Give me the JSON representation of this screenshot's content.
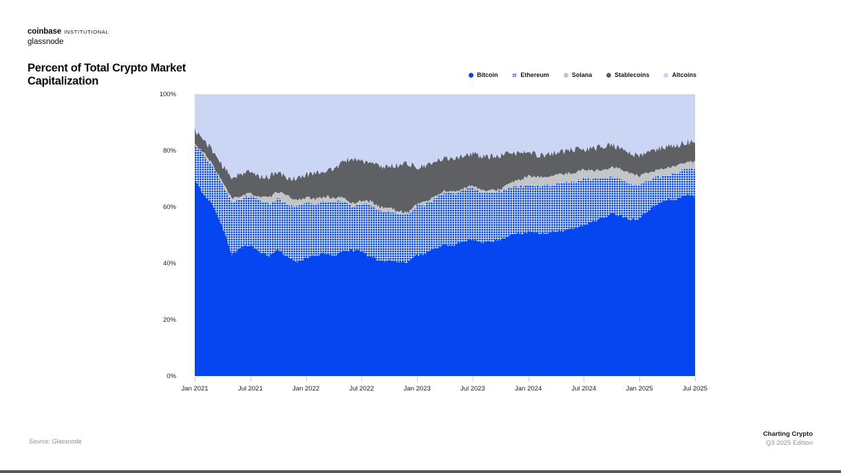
{
  "header": {
    "brand": "coinbase",
    "brand_suffix": "INSTITUTIONAL",
    "sub_brand": "glassnode"
  },
  "title_line1": "Percent of Total Crypto Market",
  "title_line2": "Capitalization",
  "legend": {
    "items": [
      {
        "label": "Bitcoin",
        "marker": "solid-circle",
        "color": "#0546f0"
      },
      {
        "label": "Ethereum",
        "marker": "checkered-circle",
        "color": "#0546f0",
        "grid_color": "#ffffff"
      },
      {
        "label": "Solana",
        "marker": "solid-circle",
        "color": "#c4c5c7"
      },
      {
        "label": "Stablecoins",
        "marker": "solid-circle",
        "color": "#5f6064"
      },
      {
        "label": "Altcoins",
        "marker": "solid-circle",
        "color": "#cbd6f4"
      }
    ]
  },
  "chart_data": {
    "type": "area",
    "stacked": true,
    "unit": "%",
    "title": "Percent of Total Crypto Market Capitalization",
    "ylim": [
      0,
      100
    ],
    "grid": false,
    "legend_position": "top-right",
    "y_tick_labels": [
      "100%",
      "80%",
      "60%",
      "40%",
      "20%",
      "0%"
    ],
    "y_tick_values": [
      100,
      80,
      60,
      40,
      20,
      0
    ],
    "x_tick_labels": [
      "Jan 2021",
      "Jul 2021",
      "Jan 2022",
      "Jul 2022",
      "Jan 2023",
      "Jul 2023",
      "Jan 2024",
      "Jul 2024",
      "Jan 2025",
      "Jul 2025"
    ],
    "x_tick_month_indices": [
      0,
      6,
      12,
      18,
      24,
      30,
      36,
      42,
      48,
      54
    ],
    "months": [
      "Jan 2021",
      "Feb 2021",
      "Mar 2021",
      "Apr 2021",
      "May 2021",
      "Jun 2021",
      "Jul 2021",
      "Aug 2021",
      "Sep 2021",
      "Oct 2021",
      "Nov 2021",
      "Dec 2021",
      "Jan 2022",
      "Feb 2022",
      "Mar 2022",
      "Apr 2022",
      "May 2022",
      "Jun 2022",
      "Jul 2022",
      "Aug 2022",
      "Sep 2022",
      "Oct 2022",
      "Nov 2022",
      "Dec 2022",
      "Jan 2023",
      "Feb 2023",
      "Mar 2023",
      "Apr 2023",
      "May 2023",
      "Jun 2023",
      "Jul 2023",
      "Aug 2023",
      "Sep 2023",
      "Oct 2023",
      "Nov 2023",
      "Dec 2023",
      "Jan 2024",
      "Feb 2024",
      "Mar 2024",
      "Apr 2024",
      "May 2024",
      "Jun 2024",
      "Jul 2024",
      "Aug 2024",
      "Sep 2024",
      "Oct 2024",
      "Nov 2024",
      "Dec 2024",
      "Jan 2025",
      "Feb 2025",
      "Mar 2025",
      "Apr 2025",
      "May 2025",
      "Jun 2025",
      "Jul 2025"
    ],
    "series": [
      {
        "name": "Bitcoin",
        "color": "#0546f0",
        "fill": "solid",
        "values": [
          69.5,
          64,
          60.5,
          52.5,
          43,
          45.5,
          46.5,
          44,
          42.5,
          45,
          42,
          40.5,
          42,
          42.5,
          43.5,
          42.5,
          44.5,
          44.5,
          44.5,
          42,
          41,
          41,
          40.5,
          40.5,
          43,
          43.5,
          45.5,
          46.5,
          46,
          48,
          48.5,
          47.5,
          47.5,
          48.5,
          50,
          50.5,
          51,
          50.5,
          50.5,
          51.5,
          51.5,
          52.5,
          53.5,
          55,
          56,
          57.5,
          57,
          55.5,
          56,
          59,
          61,
          62.5,
          62.5,
          64.5,
          63.5
        ]
      },
      {
        "name": "Ethereum",
        "color": "#0546f0",
        "fill": "white-grid-pattern",
        "values": [
          12.5,
          14.5,
          13.5,
          15.5,
          19,
          17.5,
          17.5,
          18.5,
          18.5,
          18,
          19,
          19.5,
          19.5,
          18.5,
          18.5,
          19,
          17.5,
          15.5,
          16.5,
          18.5,
          17.5,
          17.5,
          17,
          17,
          17.5,
          17.5,
          17.5,
          18.5,
          18.5,
          18,
          18.5,
          17.5,
          17.5,
          17,
          17,
          16.5,
          17,
          17,
          17,
          16.5,
          17,
          16.5,
          16.5,
          15,
          13.8,
          13.2,
          12.8,
          12.8,
          11.8,
          10.2,
          9.5,
          9,
          9.6,
          9,
          10
        ]
      },
      {
        "name": "Solana",
        "color": "#c4c5c7",
        "fill": "solid",
        "values": [
          0.3,
          0.6,
          0.7,
          0.8,
          0.9,
          0.9,
          0.8,
          1.2,
          2.2,
          2.6,
          2.8,
          2.4,
          1.9,
          1.7,
          1.8,
          1.7,
          1.4,
          1.2,
          1.3,
          1.5,
          1.4,
          1.3,
          0.9,
          0.6,
          0.8,
          1,
          0.9,
          0.8,
          0.8,
          0.7,
          0.8,
          0.8,
          0.8,
          0.9,
          1.5,
          2.5,
          2.9,
          2.9,
          3.4,
          3.3,
          3.3,
          3.3,
          3.3,
          3.1,
          3.2,
          3.3,
          3.8,
          3.6,
          3.2,
          2.8,
          2.6,
          2.4,
          2.4,
          2.3,
          2.6
        ]
      },
      {
        "name": "Stablecoins",
        "color": "#5f6064",
        "fill": "solid",
        "values": [
          5,
          4.5,
          5,
          5.5,
          7.5,
          8,
          7.5,
          7,
          7.5,
          6.5,
          6.5,
          7.5,
          8,
          9.5,
          9,
          10,
          12.5,
          16,
          14,
          13.5,
          14.5,
          14.5,
          16.5,
          17.5,
          12.5,
          12.5,
          12,
          11.5,
          12,
          11.5,
          11,
          12,
          12,
          11.5,
          10.5,
          9.5,
          8.5,
          8,
          7.5,
          8,
          8,
          8,
          7,
          7.5,
          8.5,
          8,
          7,
          7,
          7,
          7.5,
          7.5,
          7.3,
          7.2,
          7.2,
          6.9
        ]
      },
      {
        "name": "Altcoins",
        "color": "#cbd6f4",
        "fill": "solid",
        "values": [
          12.7,
          16.4,
          20.3,
          25.7,
          29.6,
          28.1,
          27.7,
          29.3,
          29.3,
          27.9,
          29.7,
          30.1,
          28.6,
          27.8,
          27.2,
          26.8,
          24.1,
          22.8,
          23.7,
          24.5,
          25.6,
          25.7,
          25.1,
          24.4,
          26.2,
          25.5,
          24.1,
          22.7,
          22.7,
          21.8,
          21.2,
          22.2,
          22.2,
          22.1,
          21,
          21,
          20.6,
          21.6,
          21.6,
          20.7,
          20.2,
          19.7,
          19.7,
          19.4,
          18.5,
          18,
          19.4,
          21.1,
          22,
          20.5,
          19.4,
          18.8,
          18.3,
          17,
          17
        ]
      }
    ]
  },
  "footer": {
    "source": "Source: Glassnode",
    "right_line1": "Charting Crypto",
    "right_line2": "Q3 2025 Edition"
  },
  "bottom_bar_color": "#58585a"
}
